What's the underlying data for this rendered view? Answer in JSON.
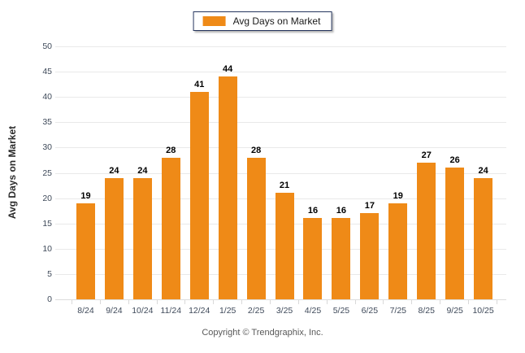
{
  "legend": {
    "label": "Avg Days on Market"
  },
  "y_axis": {
    "title": "Avg Days on Market",
    "min": 0,
    "max": 50,
    "step": 5
  },
  "footer": {
    "copyright": "Copyright © Trendgraphix, Inc."
  },
  "colors": {
    "bar": "#EF8A17",
    "grid": "#E9E9E9",
    "baseline": "#DCDCDC",
    "tick": "#D9D9D9",
    "axis_label": "#3F4A5A",
    "value_label": "#000000",
    "legend_border": "#26365E",
    "footer": "#595959"
  },
  "chart_data": {
    "type": "bar",
    "categories": [
      "8/24",
      "9/24",
      "10/24",
      "11/24",
      "12/24",
      "1/25",
      "2/25",
      "3/25",
      "4/25",
      "5/25",
      "6/25",
      "7/25",
      "8/25",
      "9/25",
      "10/25"
    ],
    "values": [
      19,
      24,
      24,
      28,
      41,
      44,
      28,
      21,
      16,
      16,
      17,
      19,
      27,
      26,
      24
    ],
    "title": "Avg Days on Market",
    "xlabel": "",
    "ylabel": "Avg Days on Market",
    "ylim": [
      0,
      50
    ],
    "ytick_step": 5,
    "grid": true,
    "legend_position": "top-center",
    "bar_color": "#EF8A17"
  }
}
